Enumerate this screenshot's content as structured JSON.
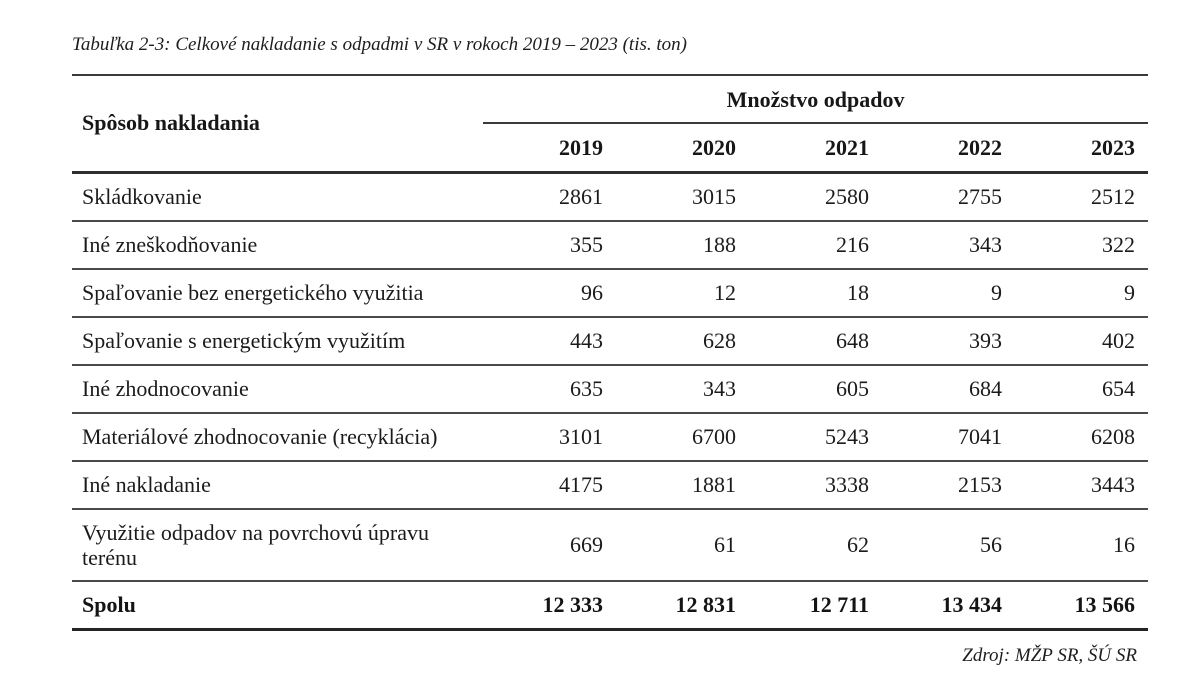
{
  "document": {
    "title": "Tabuľka 2-3: Celkové nakladanie s odpadmi v SR v rokoch 2019 – 2023 (tis. ton)",
    "source": "Zdroj: MŽP SR, ŠÚ SR"
  },
  "table": {
    "row_header": "Spôsob nakladania",
    "group_header": "Množstvo odpadov",
    "years": [
      "2019",
      "2020",
      "2021",
      "2022",
      "2023"
    ],
    "rows": [
      {
        "label": "Skládkovanie",
        "values": [
          "2861",
          "3015",
          "2580",
          "2755",
          "2512"
        ]
      },
      {
        "label": "Iné zneškodňovanie",
        "values": [
          "355",
          "188",
          "216",
          "343",
          "322"
        ]
      },
      {
        "label": "Spaľovanie bez energetického využitia",
        "values": [
          "96",
          "12",
          "18",
          "9",
          "9"
        ]
      },
      {
        "label": "Spaľovanie s energetickým využitím",
        "values": [
          "443",
          "628",
          "648",
          "393",
          "402"
        ]
      },
      {
        "label": "Iné zhodnocovanie",
        "values": [
          "635",
          "343",
          "605",
          "684",
          "654"
        ]
      },
      {
        "label": "Materiálové zhodnocovanie (recyklácia)",
        "values": [
          "3101",
          "6700",
          "5243",
          "7041",
          "6208"
        ]
      },
      {
        "label": "Iné nakladanie",
        "values": [
          "4175",
          "1881",
          "3338",
          "2153",
          "3443"
        ]
      },
      {
        "label": "Využitie odpadov na povrchovú úpravu terénu",
        "values": [
          "669",
          "61",
          "62",
          "56",
          "16"
        ]
      }
    ],
    "total_row": {
      "label": "Spolu",
      "values": [
        "12 333",
        "12 831",
        "12 711",
        "13 434",
        "13 566"
      ]
    }
  }
}
